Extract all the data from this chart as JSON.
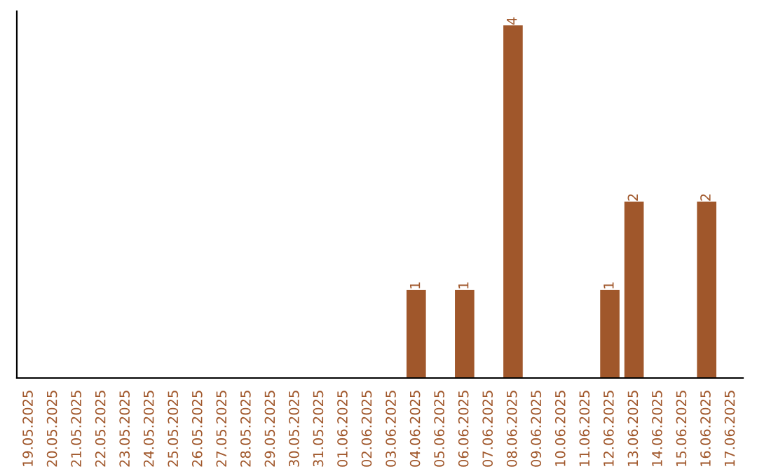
{
  "chart_data": {
    "type": "bar",
    "categories": [
      "19.05.2025",
      "20.05.2025",
      "21.05.2025",
      "22.05.2025",
      "23.05.2025",
      "24.05.2025",
      "25.05.2025",
      "26.05.2025",
      "27.05.2025",
      "28.05.2025",
      "29.05.2025",
      "30.05.2025",
      "31.05.2025",
      "01.06.2025",
      "02.06.2025",
      "03.06.2025",
      "04.06.2025",
      "05.06.2025",
      "06.06.2025",
      "07.06.2025",
      "08.06.2025",
      "09.06.2025",
      "10.06.2025",
      "11.06.2025",
      "12.06.2025",
      "13.06.2025",
      "14.06.2025",
      "15.06.2025",
      "16.06.2025",
      "17.06.2025"
    ],
    "values": [
      null,
      null,
      null,
      null,
      null,
      null,
      null,
      null,
      null,
      null,
      null,
      null,
      null,
      null,
      null,
      null,
      1,
      null,
      1,
      null,
      4,
      null,
      null,
      null,
      1,
      2,
      null,
      null,
      2,
      null
    ],
    "data_labels": true,
    "color": "#a0572b",
    "grid": false,
    "tick_labels": "x"
  }
}
